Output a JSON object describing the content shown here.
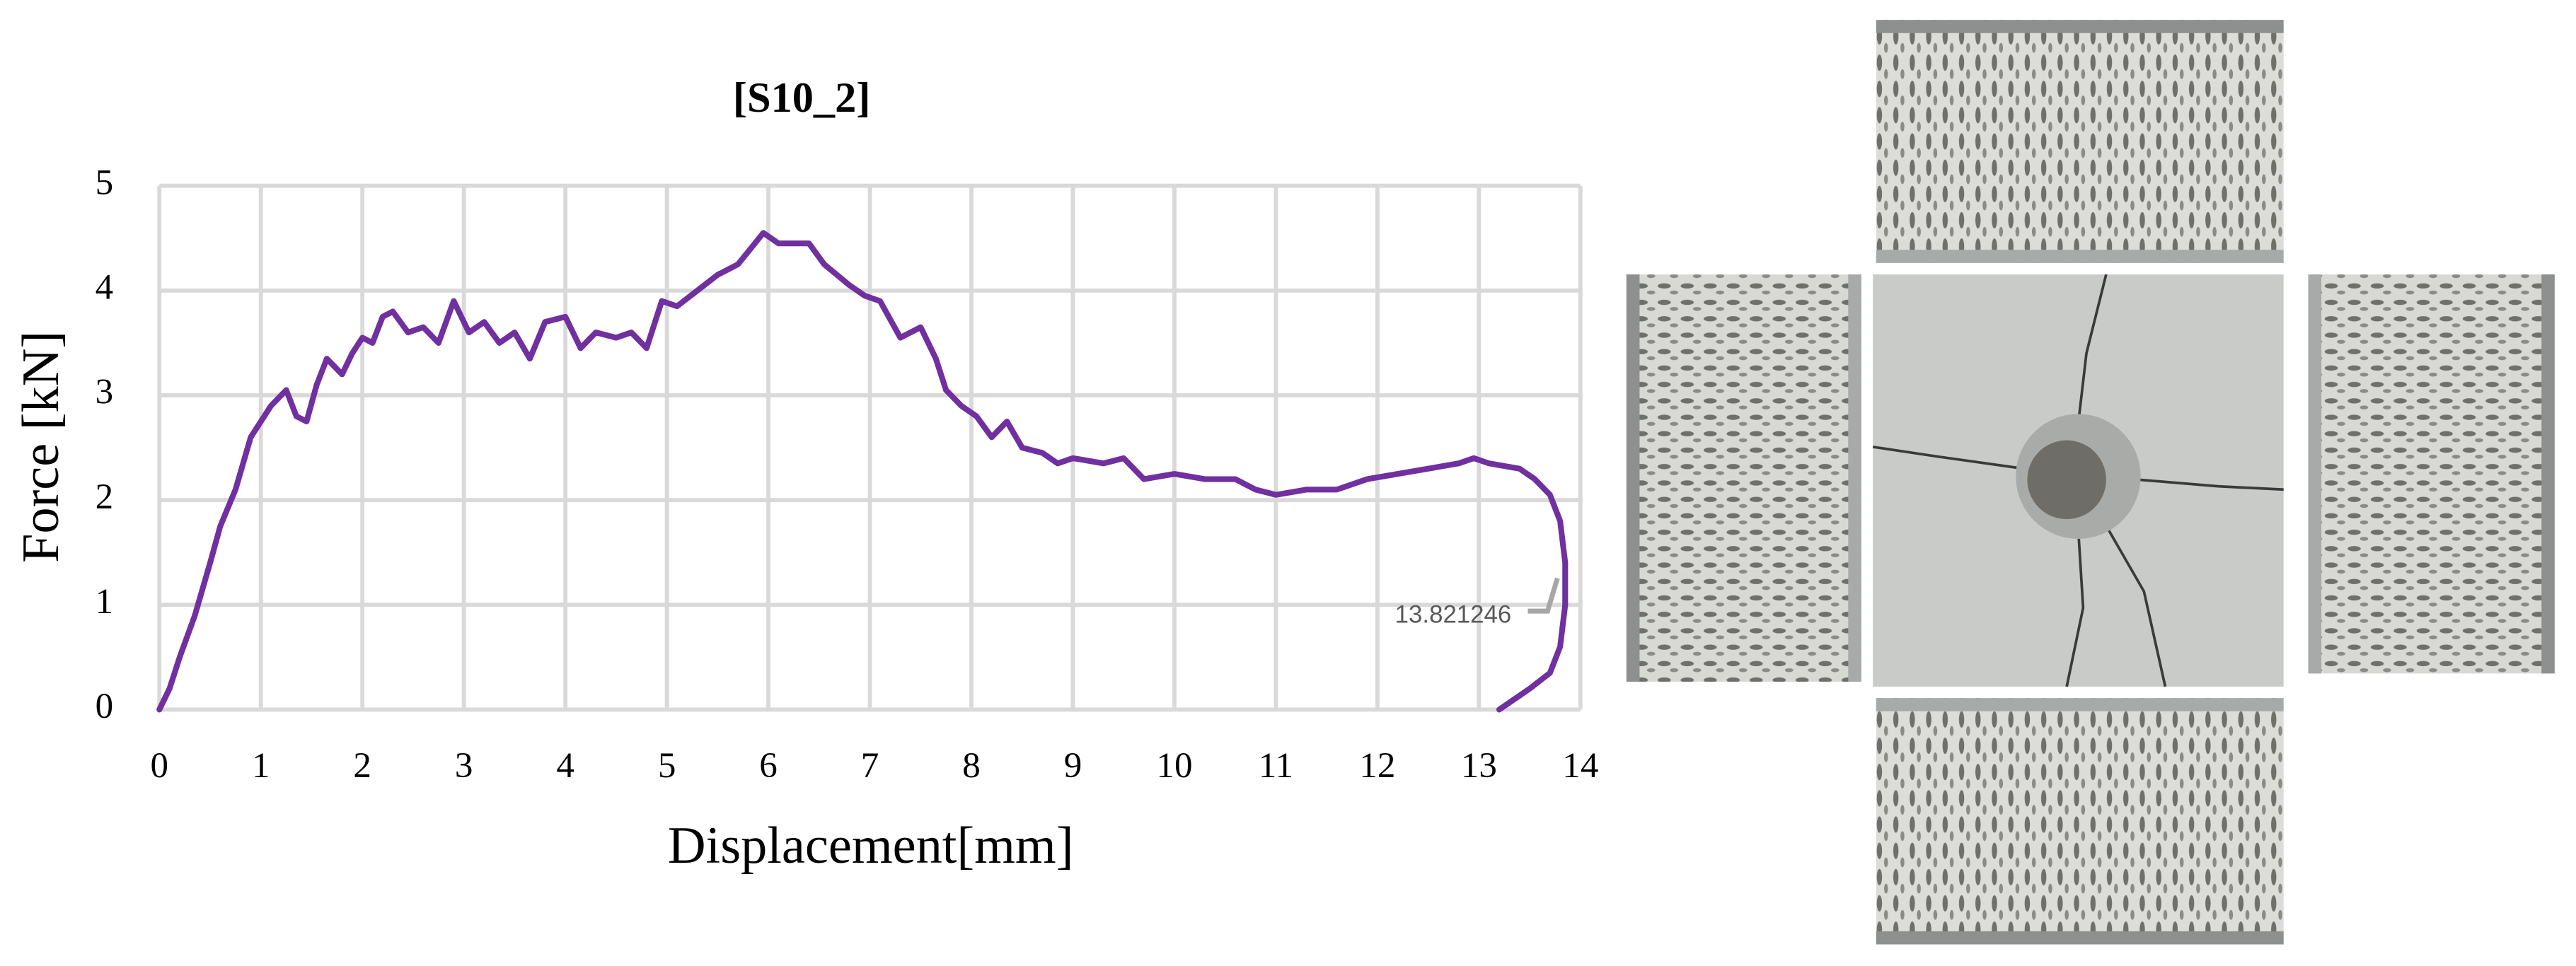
{
  "chart_data": {
    "type": "line",
    "title": "[S10_2]",
    "x_label": "Displacement[mm]",
    "y_label": "Force [kN]",
    "annotation": "13.821246",
    "xlim": [
      0,
      14
    ],
    "ylim": [
      0,
      5
    ],
    "xticks": [
      0,
      1,
      2,
      3,
      4,
      5,
      6,
      7,
      8,
      9,
      10,
      11,
      12,
      13,
      14
    ],
    "yticks": [
      0,
      1,
      2,
      3,
      4,
      5
    ],
    "grid": true,
    "series": [
      {
        "color": "#7030a0",
        "x": [
          0,
          0.1,
          0.2,
          0.35,
          0.5,
          0.6,
          0.75,
          0.9,
          1.0,
          1.1,
          1.25,
          1.35,
          1.45,
          1.55,
          1.65,
          1.8,
          1.9,
          2.0,
          2.1,
          2.2,
          2.3,
          2.45,
          2.6,
          2.75,
          2.9,
          3.05,
          3.2,
          3.35,
          3.5,
          3.65,
          3.8,
          4.0,
          4.15,
          4.3,
          4.5,
          4.65,
          4.8,
          4.95,
          5.1,
          5.3,
          5.5,
          5.7,
          5.95,
          6.1,
          6.4,
          6.55,
          6.8,
          6.95,
          7.1,
          7.3,
          7.5,
          7.65,
          7.75,
          7.9,
          8.05,
          8.2,
          8.35,
          8.5,
          8.7,
          8.85,
          9.0,
          9.3,
          9.5,
          9.7,
          10.0,
          10.3,
          10.6,
          10.8,
          11.0,
          11.3,
          11.6,
          11.9,
          12.2,
          12.5,
          12.8,
          12.95,
          13.1,
          13.4,
          13.55,
          13.7,
          13.8,
          13.85,
          13.85,
          13.8,
          13.7,
          13.5,
          13.35,
          13.2
        ],
        "values": [
          0,
          0.2,
          0.5,
          0.9,
          1.4,
          1.75,
          2.1,
          2.6,
          2.75,
          2.9,
          3.05,
          2.8,
          2.75,
          3.1,
          3.35,
          3.2,
          3.4,
          3.55,
          3.5,
          3.75,
          3.8,
          3.6,
          3.65,
          3.5,
          3.9,
          3.6,
          3.7,
          3.5,
          3.6,
          3.35,
          3.7,
          3.75,
          3.45,
          3.6,
          3.55,
          3.6,
          3.45,
          3.9,
          3.85,
          4.0,
          4.15,
          4.25,
          4.55,
          4.45,
          4.45,
          4.25,
          4.05,
          3.95,
          3.9,
          3.55,
          3.65,
          3.35,
          3.05,
          2.9,
          2.8,
          2.6,
          2.75,
          2.5,
          2.45,
          2.35,
          2.4,
          2.35,
          2.4,
          2.2,
          2.25,
          2.2,
          2.2,
          2.1,
          2.05,
          2.1,
          2.1,
          2.2,
          2.25,
          2.3,
          2.35,
          2.4,
          2.35,
          2.3,
          2.2,
          2.05,
          1.8,
          1.4,
          1.0,
          0.6,
          0.35,
          0.2,
          0.1,
          0
        ]
      }
    ]
  }
}
